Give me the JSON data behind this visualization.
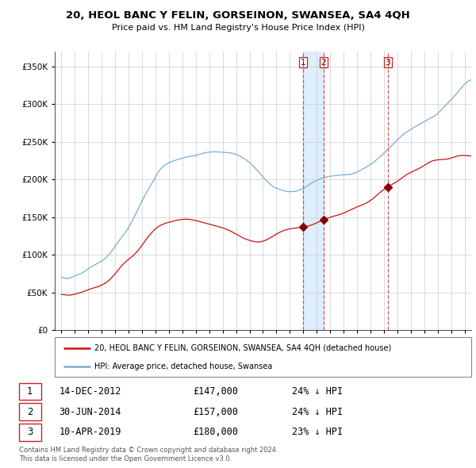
{
  "title": "20, HEOL BANC Y FELIN, GORSEINON, SWANSEA, SA4 4QH",
  "subtitle": "Price paid vs. HM Land Registry's House Price Index (HPI)",
  "legend_property": "20, HEOL BANC Y FELIN, GORSEINON, SWANSEA, SA4 4QH (detached house)",
  "legend_hpi": "HPI: Average price, detached house, Swansea",
  "footer1": "Contains HM Land Registry data © Crown copyright and database right 2024.",
  "footer2": "This data is licensed under the Open Government Licence v3.0.",
  "sales": [
    {
      "num": 1,
      "date": "14-DEC-2012",
      "price": 147000,
      "pct": "24%",
      "x_year": 2012.96
    },
    {
      "num": 2,
      "date": "30-JUN-2014",
      "price": 157000,
      "pct": "24%",
      "x_year": 2014.5
    },
    {
      "num": 3,
      "date": "10-APR-2019",
      "price": 180000,
      "pct": "23%",
      "x_year": 2019.28
    }
  ],
  "hpi_color": "#7aadd4",
  "property_color": "#cc1111",
  "sale_marker_color": "#880000",
  "sale_line_color": "#cc3333",
  "shade_color": "#ddeeff",
  "background_color": "#ffffff",
  "grid_color": "#cccccc",
  "ylim": [
    0,
    370000
  ],
  "xlim": [
    1994.5,
    2025.5
  ],
  "yticks": [
    0,
    50000,
    100000,
    150000,
    200000,
    250000,
    300000,
    350000
  ],
  "hpi_data_monthly": {
    "start_year": 1995.0,
    "step": 0.08333,
    "values": [
      70500,
      69800,
      69200,
      68700,
      68500,
      68400,
      68600,
      69000,
      69500,
      70100,
      70700,
      71300,
      72000,
      72600,
      73100,
      73600,
      74100,
      74700,
      75400,
      76200,
      77100,
      78100,
      79200,
      80300,
      81400,
      82400,
      83400,
      84300,
      85100,
      85900,
      86700,
      87500,
      88300,
      89100,
      89900,
      90700,
      91600,
      92600,
      93700,
      95000,
      96400,
      97900,
      99500,
      101200,
      103000,
      104900,
      106900,
      109000,
      111200,
      113400,
      115600,
      117700,
      119800,
      121800,
      123700,
      125600,
      127500,
      129400,
      131500,
      133700,
      136100,
      138700,
      141400,
      144200,
      147100,
      150100,
      153200,
      156300,
      159400,
      162500,
      165600,
      168700,
      171700,
      174600,
      177400,
      180100,
      182700,
      185200,
      187600,
      190100,
      192600,
      195200,
      197900,
      200600,
      203400,
      206100,
      208700,
      211000,
      213000,
      214700,
      216200,
      217500,
      218700,
      219700,
      220600,
      221400,
      222200,
      222900,
      223600,
      224200,
      224700,
      225200,
      225700,
      226200,
      226600,
      227000,
      227400,
      227800,
      228200,
      228600,
      229000,
      229400,
      229800,
      230200,
      230500,
      230800,
      231000,
      231200,
      231400,
      231600,
      231900,
      232300,
      232800,
      233300,
      233800,
      234200,
      234600,
      235000,
      235300,
      235600,
      235900,
      236100,
      236300,
      236500,
      236600,
      236700,
      236700,
      236700,
      236700,
      236600,
      236500,
      236400,
      236200,
      236100,
      236000,
      235900,
      235800,
      235700,
      235600,
      235500,
      235400,
      235200,
      234900,
      234600,
      234200,
      233800,
      233200,
      232600,
      231900,
      231200,
      230400,
      229600,
      228700,
      227800,
      226900,
      225900,
      224800,
      223600,
      222400,
      221100,
      219700,
      218200,
      216700,
      215100,
      213500,
      211800,
      210100,
      208400,
      206700,
      205000,
      203300,
      201700,
      200100,
      198500,
      197000,
      195600,
      194200,
      192900,
      191700,
      190600,
      189700,
      189000,
      188300,
      187700,
      187200,
      186700,
      186200,
      185700,
      185200,
      184700,
      184300,
      184000,
      183800,
      183700,
      183700,
      183700,
      183800,
      183900,
      184100,
      184300,
      184600,
      185000,
      185400,
      185900,
      186500,
      187200,
      188000,
      188900,
      189900,
      190900,
      191900,
      192900,
      193800,
      194700,
      195600,
      196500,
      197300,
      198100,
      198900,
      199600,
      200200,
      200800,
      201300,
      201700,
      202200,
      202600,
      203000,
      203400,
      203700,
      204000,
      204200,
      204400,
      204600,
      204800,
      205000,
      205200,
      205400,
      205600,
      205700,
      205800,
      205900,
      206000,
      206100,
      206200,
      206300,
      206400,
      206500,
      206700,
      206900,
      207200,
      207600,
      208000,
      208500,
      209100,
      209800,
      210500,
      211300,
      212100,
      212900,
      213700,
      214500,
      215300,
      216100,
      217000,
      217900,
      218900,
      219900,
      220900,
      222000,
      223100,
      224300,
      225500,
      226800,
      228100,
      229400,
      230700,
      232000,
      233400,
      234800,
      236200,
      237700,
      239200,
      240700,
      242200,
      243700,
      245200,
      246700,
      248200,
      249700,
      251200,
      252600,
      254000,
      255400,
      256800,
      258200,
      259500,
      260700,
      261900,
      262900,
      263900,
      264800,
      265700,
      266600,
      267500,
      268400,
      269300,
      270200,
      271100,
      272000,
      272800,
      273600,
      274400,
      275200,
      276000,
      276800,
      277600,
      278400,
      279200,
      280000,
      280800,
      281600,
      282400,
      283300,
      284300,
      285400,
      286600,
      287800,
      289100,
      290500,
      291900,
      293400,
      294900,
      296400,
      298000,
      299500,
      301100,
      302600,
      304200,
      305700,
      307300,
      309000,
      310700,
      312500,
      314300,
      316100,
      318000,
      319800,
      321600,
      323300,
      325000,
      326500,
      327900,
      329100,
      330200,
      331100,
      331800,
      332400,
      332800,
      333100,
      333300,
      333500,
      333600
    ]
  },
  "property_data_monthly": {
    "start_year": 1995.0,
    "step": 0.08333,
    "values": [
      47200,
      47100,
      46900,
      46700,
      46500,
      46400,
      46300,
      46300,
      46400,
      46600,
      46900,
      47200,
      47600,
      48000,
      48400,
      48800,
      49200,
      49600,
      50100,
      50600,
      51200,
      51800,
      52400,
      53000,
      53600,
      54100,
      54600,
      55100,
      55500,
      55900,
      56300,
      56700,
      57200,
      57700,
      58300,
      59000,
      59700,
      60400,
      61200,
      62100,
      63100,
      64200,
      65400,
      66700,
      68100,
      69600,
      71200,
      72900,
      74700,
      76500,
      78400,
      80300,
      82100,
      83900,
      85600,
      87200,
      88700,
      90100,
      91400,
      92600,
      93800,
      95000,
      96200,
      97400,
      98700,
      100100,
      101600,
      103200,
      104900,
      106700,
      108600,
      110600,
      112600,
      114700,
      116800,
      118900,
      120900,
      122900,
      124800,
      126600,
      128300,
      129900,
      131500,
      133000,
      134400,
      135600,
      136700,
      137700,
      138600,
      139400,
      140100,
      140700,
      141300,
      141800,
      142300,
      142700,
      143100,
      143500,
      143900,
      144300,
      144700,
      145100,
      145500,
      145800,
      146100,
      146400,
      146600,
      146800,
      147000,
      147100,
      147200,
      147200,
      147200,
      147100,
      147000,
      146800,
      146600,
      146300,
      146000,
      145700,
      145300,
      145000,
      144600,
      144200,
      143800,
      143400,
      143000,
      142600,
      142200,
      141800,
      141400,
      141000,
      140600,
      140200,
      139800,
      139400,
      139000,
      138600,
      138200,
      137800,
      137400,
      137000,
      136600,
      136200,
      135700,
      135200,
      134700,
      134100,
      133500,
      132800,
      132100,
      131400,
      130600,
      129800,
      129000,
      128200,
      127300,
      126500,
      125600,
      124800,
      124000,
      123200,
      122400,
      121700,
      121100,
      120500,
      120000,
      119500,
      119000,
      118600,
      118200,
      117800,
      117500,
      117200,
      117000,
      116900,
      116900,
      117000,
      117200,
      117500,
      117900,
      118400,
      119000,
      119700,
      120400,
      121200,
      122000,
      122800,
      123700,
      124600,
      125500,
      126400,
      127300,
      128200,
      129000,
      129800,
      130500,
      131200,
      131800,
      132400,
      132900,
      133300,
      133700,
      134000,
      134300,
      134500,
      134700,
      134900,
      135100,
      135300,
      135500,
      135700,
      135900,
      136100,
      136300,
      136500,
      136700,
      137000,
      137300,
      137600,
      138000,
      138400,
      138800,
      139300,
      139800,
      140400,
      141000,
      141600,
      142300,
      143000,
      143700,
      144400,
      145100,
      145800,
      146500,
      147100,
      147700,
      148300,
      148800,
      149300,
      149800,
      150200,
      150600,
      151000,
      151400,
      151800,
      152200,
      152600,
      153100,
      153600,
      154100,
      154700,
      155300,
      155900,
      156600,
      157300,
      158000,
      158700,
      159400,
      160100,
      160800,
      161500,
      162100,
      162800,
      163400,
      164000,
      164600,
      165200,
      165800,
      166400,
      167000,
      167700,
      168400,
      169200,
      170100,
      171000,
      172000,
      173100,
      174300,
      175500,
      176800,
      178100,
      179400,
      180700,
      182000,
      183200,
      184400,
      185600,
      186700,
      187800,
      188800,
      189700,
      190600,
      191500,
      192300,
      193100,
      193900,
      194800,
      195700,
      196600,
      197600,
      198600,
      199700,
      200800,
      201900,
      203000,
      204100,
      205100,
      206100,
      207000,
      207800,
      208600,
      209400,
      210100,
      210800,
      211500,
      212200,
      212900,
      213600,
      214300,
      215100,
      215900,
      216800,
      217700,
      218600,
      219600,
      220500,
      221400,
      222300,
      223100,
      223800,
      224400,
      224900,
      225300,
      225600,
      225800,
      226000,
      226100,
      226200,
      226300,
      226400,
      226500,
      226600,
      226700,
      226900,
      227200,
      227500,
      227900,
      228400,
      228900,
      229400,
      229900,
      230400,
      230800,
      231200,
      231500,
      231700,
      231800,
      231900,
      231900,
      231900,
      231800,
      231700,
      231600,
      231400,
      231200,
      231000,
      230700,
      230400,
      230100,
      229700,
      229300
    ]
  }
}
